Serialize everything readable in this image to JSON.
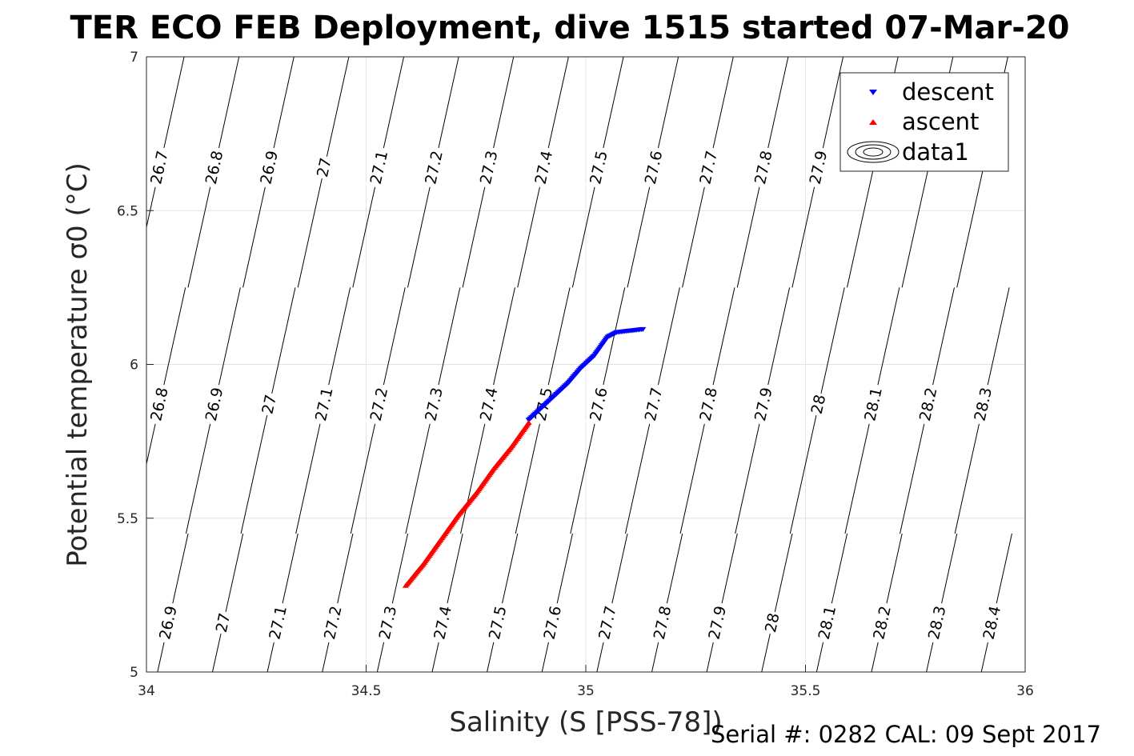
{
  "chart_data": {
    "type": "scatter",
    "title": "TER ECO FEB Deployment, dive 1515 started 07-Mar-20",
    "xlabel": "Salinity (S [PSS-78])",
    "ylabel": "Potential temperature σ0 (°C)",
    "xlim": [
      34,
      36
    ],
    "ylim": [
      5,
      7
    ],
    "x_ticks": [
      "34",
      "34.5",
      "35",
      "35.5",
      "36"
    ],
    "y_ticks": [
      "5",
      "5.5",
      "6",
      "6.5",
      "7"
    ],
    "grid": true,
    "legend": {
      "placement": "top-right",
      "entries": [
        "descent",
        "ascent",
        "data1"
      ]
    },
    "series": [
      {
        "name": "descent",
        "marker": "triangle-down",
        "color": "#0000ff",
        "points": [
          [
            34.87,
            5.82
          ],
          [
            34.9,
            5.86
          ],
          [
            34.93,
            5.9
          ],
          [
            34.96,
            5.94
          ],
          [
            34.99,
            5.99
          ],
          [
            35.02,
            6.03
          ],
          [
            35.05,
            6.09
          ],
          [
            35.07,
            6.105
          ],
          [
            35.1,
            6.11
          ],
          [
            35.13,
            6.115
          ]
        ]
      },
      {
        "name": "ascent",
        "marker": "triangle-up",
        "color": "#ff0000",
        "points": [
          [
            34.59,
            5.28
          ],
          [
            34.63,
            5.35
          ],
          [
            34.67,
            5.43
          ],
          [
            34.71,
            5.51
          ],
          [
            34.75,
            5.58
          ],
          [
            34.79,
            5.66
          ],
          [
            34.83,
            5.73
          ],
          [
            34.87,
            5.81
          ]
        ]
      }
    ],
    "contours": {
      "name": "data1",
      "label_sets": [
        {
          "y": 6.64,
          "items": [
            {
              "label": "26.7",
              "x": 34.03
            },
            {
              "label": "26.8",
              "x": 34.155
            },
            {
              "label": "26.9",
              "x": 34.28
            },
            {
              "label": "27",
              "x": 34.405
            },
            {
              "label": "27.1",
              "x": 34.53
            },
            {
              "label": "27.2",
              "x": 34.655
            },
            {
              "label": "27.3",
              "x": 34.78
            },
            {
              "label": "27.4",
              "x": 34.905
            },
            {
              "label": "27.5",
              "x": 35.03
            },
            {
              "label": "27.6",
              "x": 35.155
            },
            {
              "label": "27.7",
              "x": 35.28
            },
            {
              "label": "27.8",
              "x": 35.405
            },
            {
              "label": "27.9",
              "x": 35.53
            }
          ]
        },
        {
          "y": 5.87,
          "items": [
            {
              "label": "26.8",
              "x": 34.03
            },
            {
              "label": "26.9",
              "x": 34.155
            },
            {
              "label": "27",
              "x": 34.28
            },
            {
              "label": "27.1",
              "x": 34.405
            },
            {
              "label": "27.2",
              "x": 34.53
            },
            {
              "label": "27.3",
              "x": 34.655
            },
            {
              "label": "27.4",
              "x": 34.78
            },
            {
              "label": "27.5",
              "x": 34.905
            },
            {
              "label": "27.6",
              "x": 35.03
            },
            {
              "label": "27.7",
              "x": 35.155
            },
            {
              "label": "27.8",
              "x": 35.28
            },
            {
              "label": "27.9",
              "x": 35.405
            },
            {
              "label": "28",
              "x": 35.53
            },
            {
              "label": "28.1",
              "x": 35.655
            },
            {
              "label": "28.2",
              "x": 35.78
            },
            {
              "label": "28.3",
              "x": 35.905
            }
          ]
        },
        {
          "y": 5.16,
          "items": [
            {
              "label": "26.9",
              "x": 34.05
            },
            {
              "label": "27",
              "x": 34.175
            },
            {
              "label": "27.1",
              "x": 34.3
            },
            {
              "label": "27.2",
              "x": 34.425
            },
            {
              "label": "27.3",
              "x": 34.55
            },
            {
              "label": "27.4",
              "x": 34.675
            },
            {
              "label": "27.5",
              "x": 34.8
            },
            {
              "label": "27.6",
              "x": 34.925
            },
            {
              "label": "27.7",
              "x": 35.05
            },
            {
              "label": "27.8",
              "x": 35.175
            },
            {
              "label": "27.9",
              "x": 35.3
            },
            {
              "label": "28",
              "x": 35.425
            },
            {
              "label": "28.1",
              "x": 35.55
            },
            {
              "label": "28.2",
              "x": 35.675
            },
            {
              "label": "28.3",
              "x": 35.8
            },
            {
              "label": "28.4",
              "x": 35.925
            }
          ]
        }
      ]
    }
  },
  "footer": {
    "serial": "Serial #: 0282  CAL: 09 Sept 2017"
  }
}
